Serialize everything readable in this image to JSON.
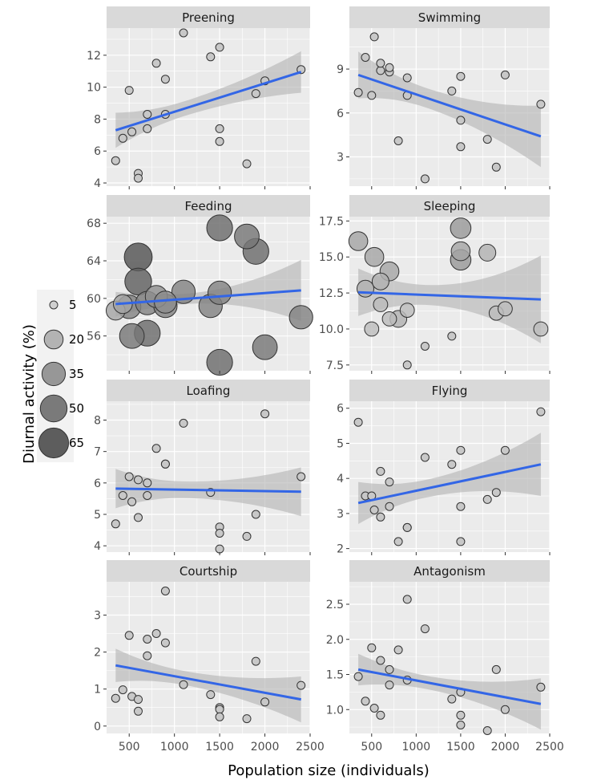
{
  "chart_data": {
    "type": "scatter",
    "x_label": "Population size (individuals)",
    "y_label": "Diurnal activity (%)",
    "x_ticks": [
      "500",
      "1000",
      "1500",
      "2000",
      "2500"
    ],
    "x_lim": [
      250,
      2500
    ],
    "x": [
      350,
      430,
      500,
      530,
      600,
      600,
      700,
      700,
      800,
      900,
      900,
      1100,
      1400,
      1500,
      1500,
      1500,
      1800,
      1900,
      2000,
      2400
    ],
    "legend": {
      "sizes": [
        5,
        20,
        35,
        50,
        65
      ],
      "labels": [
        "5",
        "20",
        "35",
        "50",
        "65"
      ]
    },
    "style": {
      "panel_bg": "#ebebeb",
      "strip_bg": "#d9d9d9",
      "grid": "#ffffff",
      "line": "#3366e6",
      "ribbon": "#b3b3b3"
    },
    "panels": [
      {
        "title": "Preening",
        "y_ticks": [
          4,
          6,
          8,
          10,
          12
        ],
        "y_lim": [
          3.8,
          13.7
        ],
        "y": [
          5.4,
          6.8,
          9.8,
          7.2,
          4.6,
          4.3,
          8.3,
          7.4,
          11.5,
          10.5,
          8.3,
          13.4,
          11.9,
          12.5,
          7.4,
          6.6,
          5.2,
          9.6,
          10.4,
          11.1
        ],
        "size": [
          5,
          5,
          5,
          5,
          5,
          5,
          5,
          5,
          5,
          5,
          5,
          5,
          5,
          5,
          5,
          5,
          5,
          5,
          5,
          5
        ],
        "fit": [
          [
            350,
            7.3
          ],
          [
            2400,
            10.95
          ]
        ],
        "ci_low": [
          6.2,
          9.7
        ],
        "ci_high": [
          8.4,
          12.3
        ],
        "ci_mid": 8.6
      },
      {
        "title": "Swimming",
        "y_ticks": [
          3,
          6,
          9
        ],
        "y_lim": [
          1.0,
          11.8
        ],
        "y": [
          7.4,
          9.8,
          7.2,
          11.2,
          8.9,
          9.4,
          8.8,
          9.1,
          4.1,
          8.4,
          7.2,
          1.5,
          7.5,
          8.5,
          5.5,
          3.7,
          4.2,
          2.3,
          8.6,
          6.6
        ],
        "size": [
          5,
          5,
          5,
          5,
          5,
          5,
          5,
          5,
          5,
          5,
          5,
          5,
          5,
          5,
          5,
          5,
          5,
          5,
          5,
          5
        ],
        "fit": [
          [
            350,
            8.6
          ],
          [
            2400,
            4.4
          ]
        ],
        "ci_low": [
          7.0,
          2.3
        ],
        "ci_high": [
          10.2,
          6.5
        ],
        "ci_mid": 1.4
      },
      {
        "title": "Feeding",
        "y_ticks": [
          56,
          60,
          64,
          68
        ],
        "y_lim": [
          52.3,
          68.7
        ],
        "y": [
          58.7,
          59.4,
          59.1,
          56.0,
          61.8,
          64.4,
          59.5,
          56.3,
          60.2,
          59.2,
          59.6,
          60.7,
          59.2,
          67.5,
          60.6,
          53.2,
          66.6,
          65.0,
          54.8,
          58.0
        ],
        "size": [
          20,
          20,
          35,
          40,
          50,
          55,
          35,
          45,
          30,
          35,
          30,
          35,
          35,
          45,
          35,
          45,
          40,
          45,
          40,
          35
        ],
        "fit": [
          [
            350,
            59.4
          ],
          [
            2400,
            60.85
          ]
        ],
        "ci_low": [
          58.1,
          57.6
        ],
        "ci_high": [
          60.7,
          64.1
        ],
        "ci_mid": 1.6
      },
      {
        "title": "Sleeping",
        "y_ticks": [
          7.5,
          10.0,
          12.5,
          15.0,
          17.5
        ],
        "y_lim": [
          7.1,
          17.8
        ],
        "y": [
          16.1,
          12.8,
          10.0,
          15.0,
          13.3,
          11.7,
          14.0,
          10.7,
          10.7,
          7.5,
          11.3,
          8.8,
          9.5,
          17.0,
          15.4,
          14.8,
          15.3,
          11.1,
          11.4,
          10.0
        ],
        "size": [
          20,
          15,
          10,
          20,
          15,
          10,
          20,
          10,
          15,
          5,
          10,
          5,
          5,
          25,
          20,
          25,
          15,
          10,
          10,
          10
        ],
        "fit": [
          [
            350,
            12.55
          ],
          [
            2400,
            12.05
          ]
        ],
        "ci_low": [
          10.9,
          9.0
        ],
        "ci_high": [
          14.2,
          15.1
        ],
        "ci_mid": 1.5
      },
      {
        "title": "Loafing",
        "y_ticks": [
          4,
          5,
          6,
          7,
          8
        ],
        "y_lim": [
          3.8,
          8.6
        ],
        "y": [
          4.7,
          5.6,
          6.2,
          5.4,
          4.9,
          6.1,
          6.0,
          5.6,
          7.1,
          6.6,
          6.6,
          7.9,
          5.7,
          4.6,
          4.4,
          3.9,
          4.3,
          5.0,
          8.2,
          6.2
        ],
        "size": [
          5,
          5,
          5,
          5,
          5,
          5,
          5,
          5,
          5,
          5,
          5,
          5,
          5,
          5,
          5,
          5,
          5,
          5,
          5,
          5
        ],
        "fit": [
          [
            350,
            5.82
          ],
          [
            2400,
            5.72
          ]
        ],
        "ci_low": [
          5.2,
          4.95
        ],
        "ci_high": [
          6.45,
          6.5
        ],
        "ci_mid": 0.6
      },
      {
        "title": "Flying",
        "y_ticks": [
          2,
          3,
          4,
          5,
          6
        ],
        "y_lim": [
          1.9,
          6.2
        ],
        "y": [
          5.6,
          3.5,
          3.5,
          3.1,
          4.2,
          2.9,
          3.2,
          3.9,
          2.2,
          2.6,
          2.6,
          4.6,
          4.4,
          4.8,
          3.2,
          2.2,
          3.4,
          3.6,
          4.8,
          5.9
        ],
        "size": [
          5,
          5,
          5,
          5,
          5,
          5,
          5,
          5,
          5,
          5,
          5,
          5,
          5,
          5,
          5,
          5,
          5,
          5,
          5,
          5
        ],
        "fit": [
          [
            350,
            3.3
          ],
          [
            2400,
            4.4
          ]
        ],
        "ci_low": [
          2.7,
          3.5
        ],
        "ci_high": [
          3.9,
          5.3
        ],
        "ci_mid": 0.5
      },
      {
        "title": "Courtship",
        "y_ticks": [
          0,
          1,
          2,
          3
        ],
        "y_lim": [
          -0.2,
          3.9
        ],
        "y": [
          0.75,
          0.98,
          2.45,
          0.8,
          0.4,
          0.72,
          2.35,
          1.9,
          2.5,
          3.65,
          2.25,
          1.12,
          0.85,
          0.5,
          0.45,
          0.25,
          0.2,
          1.75,
          0.65,
          1.1
        ],
        "size": [
          5,
          5,
          5,
          5,
          5,
          5,
          5,
          5,
          5,
          5,
          5,
          5,
          5,
          5,
          5,
          5,
          5,
          5,
          5,
          5
        ],
        "fit": [
          [
            350,
            1.64
          ],
          [
            2400,
            0.72
          ]
        ],
        "ci_low": [
          1.2,
          0.1
        ],
        "ci_high": [
          2.1,
          1.34
        ],
        "ci_mid": 0.3
      },
      {
        "title": "Antagonism",
        "y_ticks": [
          1.0,
          1.5,
          2.0,
          2.5
        ],
        "y_lim": [
          0.66,
          2.82
        ],
        "y": [
          1.47,
          1.12,
          1.88,
          1.02,
          0.92,
          1.7,
          1.35,
          1.57,
          1.85,
          2.57,
          1.42,
          2.15,
          1.15,
          1.25,
          0.92,
          0.78,
          0.7,
          1.57,
          1.0,
          1.32
        ],
        "size": [
          5,
          5,
          5,
          5,
          5,
          5,
          5,
          5,
          5,
          5,
          5,
          5,
          5,
          5,
          5,
          5,
          5,
          5,
          5,
          5
        ],
        "fit": [
          [
            350,
            1.57
          ],
          [
            2400,
            1.08
          ]
        ],
        "ci_low": [
          1.35,
          0.72
        ],
        "ci_high": [
          1.8,
          1.45
        ],
        "ci_mid": 0.2
      }
    ]
  }
}
